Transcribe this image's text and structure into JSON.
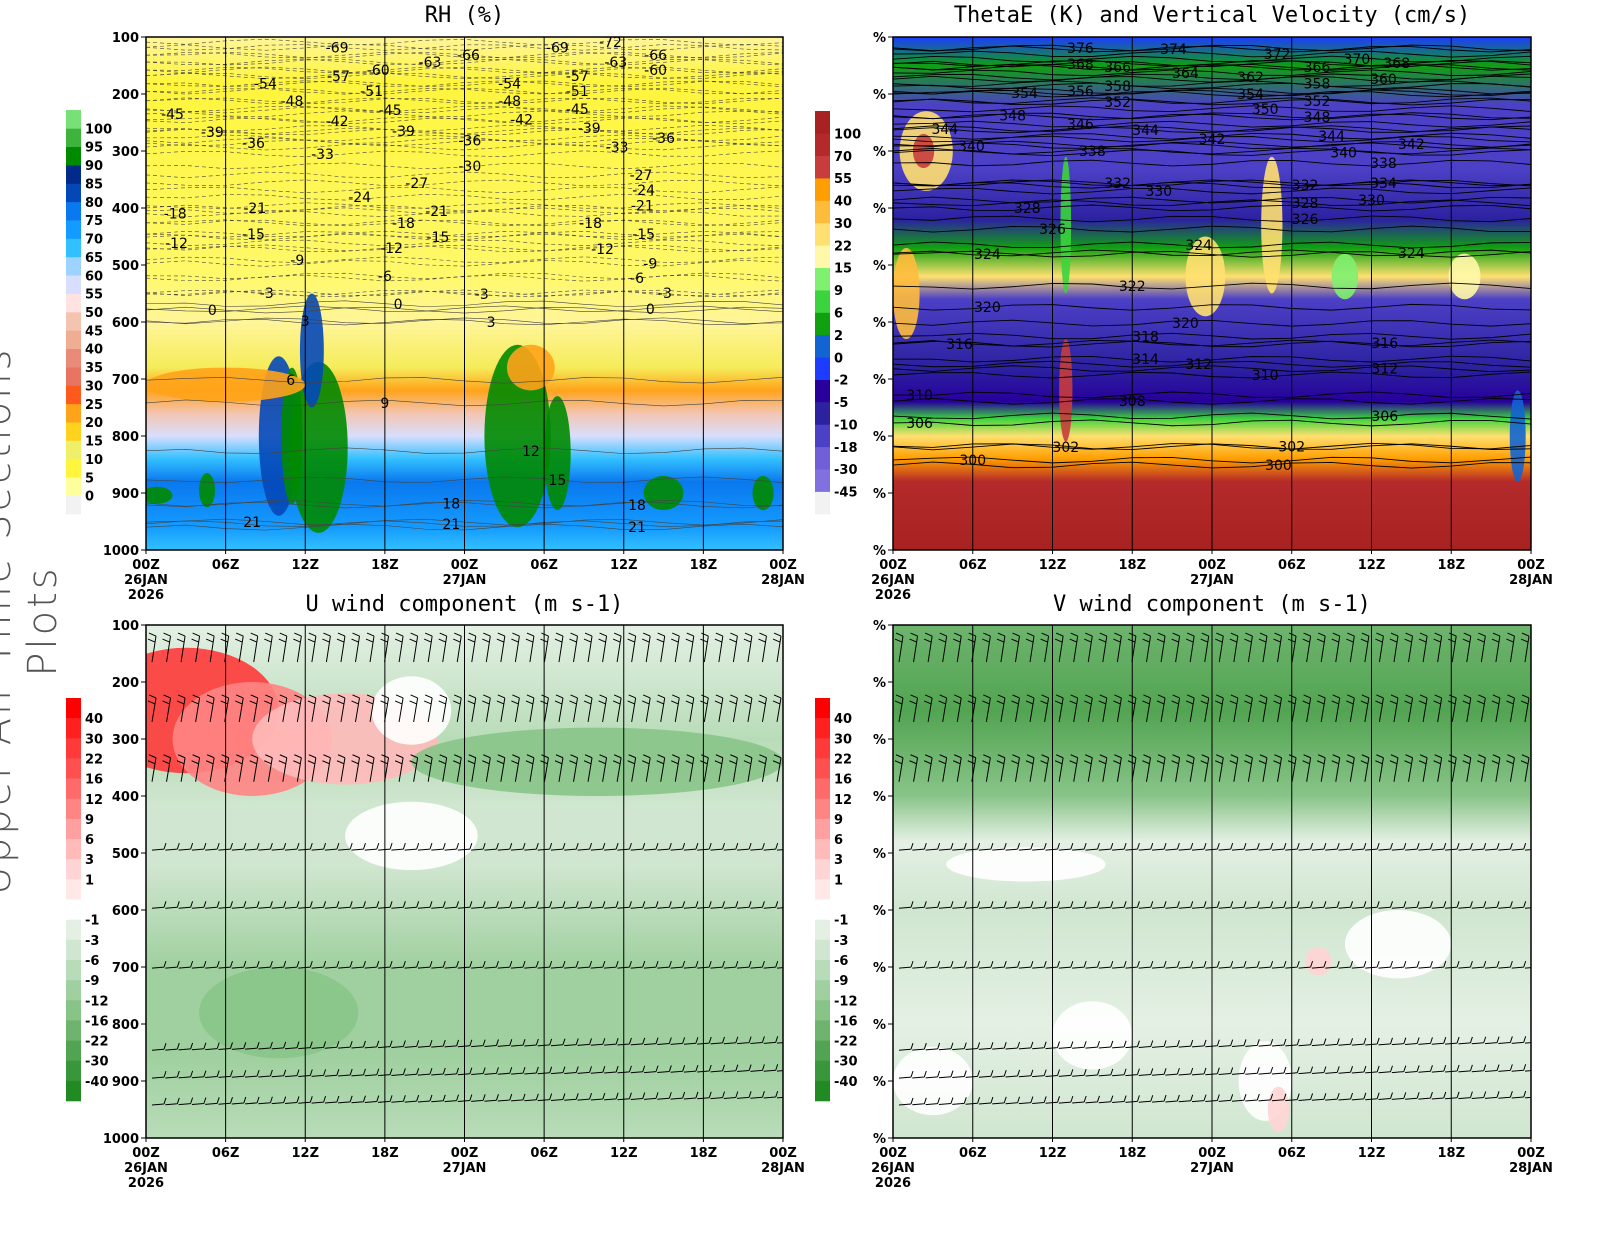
{
  "page_title": "Upper-Air Time Sections Plots",
  "chart_data": [
    {
      "type": "heatmap",
      "title": "RH (%)",
      "x_ticks": [
        "00Z",
        "06Z",
        "12Z",
        "18Z",
        "00Z",
        "06Z",
        "12Z",
        "18Z",
        "00Z"
      ],
      "x_date_labels": [
        {
          "tick": 0,
          "lines": [
            "26JAN",
            "2026"
          ]
        },
        {
          "tick": 4,
          "lines": [
            "27JAN"
          ]
        },
        {
          "tick": 8,
          "lines": [
            "28JAN"
          ]
        }
      ],
      "xlim_hours": [
        0,
        48
      ],
      "y_ticks": [
        "100",
        "200",
        "300",
        "400",
        "500",
        "600",
        "700",
        "800",
        "900",
        "1000"
      ],
      "ylim": [
        1000,
        100
      ],
      "grid": "vertical lines every 6h",
      "colorbar": {
        "labels": [
          "0",
          "5",
          "10",
          "15",
          "20",
          "25",
          "30",
          "35",
          "40",
          "45",
          "50",
          "55",
          "60",
          "65",
          "70",
          "75",
          "80",
          "85",
          "90",
          "95",
          "100"
        ],
        "colors": [
          "#f2f2f2",
          "#ffff9c",
          "#fff53c",
          "#f0ef6a",
          "#ffd21e",
          "#ffa31a",
          "#ff5a1e",
          "#e87562",
          "#ea8a78",
          "#efae92",
          "#f4c4b0",
          "#ffe2e2",
          "#d8defe",
          "#9ed2ff",
          "#33c0ff",
          "#149bff",
          "#0a78ee",
          "#0448b8",
          "#022a8a",
          "#008a00",
          "#3eb33e",
          "#78e078"
        ]
      },
      "contour_labels": [
        [
          14.4,
          118,
          "-69"
        ],
        [
          35,
          109,
          "-72"
        ],
        [
          24.3,
          132,
          "-66"
        ],
        [
          38.4,
          132,
          "-66"
        ],
        [
          31,
          118,
          "-69"
        ],
        [
          21.4,
          144,
          "-63"
        ],
        [
          35.4,
          144,
          "-63"
        ],
        [
          17.5,
          158,
          "-60"
        ],
        [
          38.4,
          158,
          "-60"
        ],
        [
          14.5,
          168,
          "-57"
        ],
        [
          32.5,
          168,
          "-57"
        ],
        [
          9,
          182,
          "-54"
        ],
        [
          27.4,
          182,
          "-54"
        ],
        [
          17,
          195,
          "-51"
        ],
        [
          32.5,
          195,
          "-51"
        ],
        [
          11,
          212,
          "-48"
        ],
        [
          27.4,
          212,
          "-48"
        ],
        [
          2,
          235,
          "-45"
        ],
        [
          18.4,
          228,
          "-45"
        ],
        [
          32.5,
          226,
          "-45"
        ],
        [
          14.4,
          247,
          "-42"
        ],
        [
          28.3,
          245,
          "-42"
        ],
        [
          5,
          267,
          "-39"
        ],
        [
          19.4,
          265,
          "-39"
        ],
        [
          33.4,
          260,
          "-39"
        ],
        [
          8.1,
          286,
          "-36"
        ],
        [
          24.4,
          282,
          "-36"
        ],
        [
          39,
          277,
          "-36"
        ],
        [
          13.3,
          305,
          "-33"
        ],
        [
          35.5,
          293,
          "-33"
        ],
        [
          24.4,
          326,
          "-30"
        ],
        [
          20.4,
          356,
          "-27"
        ],
        [
          37.3,
          342,
          "-27"
        ],
        [
          16.1,
          381,
          "-24"
        ],
        [
          37.5,
          368,
          "-24"
        ],
        [
          8.2,
          400,
          "-21"
        ],
        [
          21.9,
          405,
          "-21"
        ],
        [
          37.4,
          396,
          "-21"
        ],
        [
          2.2,
          410,
          "-18"
        ],
        [
          19.4,
          426,
          "-18"
        ],
        [
          33.5,
          426,
          "-18"
        ],
        [
          8.1,
          446,
          "-15"
        ],
        [
          22,
          451,
          "-15"
        ],
        [
          37.5,
          446,
          "-15"
        ],
        [
          2.3,
          461,
          "-12"
        ],
        [
          18.5,
          470,
          "-12"
        ],
        [
          34.4,
          472,
          "-12"
        ],
        [
          11.4,
          491,
          "-9"
        ],
        [
          38,
          497,
          "-9"
        ],
        [
          18,
          519,
          "-6"
        ],
        [
          37,
          523,
          "-6"
        ],
        [
          9.1,
          549,
          "-3"
        ],
        [
          25.3,
          551,
          "-3"
        ],
        [
          39.1,
          549,
          "-3"
        ],
        [
          5,
          579,
          "0"
        ],
        [
          19,
          568,
          "0"
        ],
        [
          38,
          577,
          "0"
        ],
        [
          12,
          598,
          "3"
        ],
        [
          26,
          600,
          "3"
        ],
        [
          10.9,
          702,
          "6"
        ],
        [
          18,
          742,
          "9"
        ],
        [
          29,
          826,
          "12"
        ],
        [
          31,
          877,
          "15"
        ],
        [
          23,
          918,
          "18"
        ],
        [
          37,
          921,
          "18"
        ],
        [
          8,
          951,
          "21"
        ],
        [
          23,
          954,
          "21"
        ],
        [
          37,
          960,
          "21"
        ]
      ]
    },
    {
      "type": "heatmap",
      "title": "ThetaE (K) and Vertical Velocity (cm/s)",
      "x_ticks": [
        "00Z",
        "06Z",
        "12Z",
        "18Z",
        "00Z",
        "06Z",
        "12Z",
        "18Z",
        "00Z"
      ],
      "x_date_labels": [
        {
          "tick": 0,
          "lines": [
            "26JAN",
            "2026"
          ]
        },
        {
          "tick": 4,
          "lines": [
            "27JAN"
          ]
        },
        {
          "tick": 8,
          "lines": [
            "28JAN"
          ]
        }
      ],
      "xlim_hours": [
        0,
        48
      ],
      "y_ticks": [
        "%",
        "%",
        "%",
        "%",
        "%",
        "%",
        "%",
        "%",
        "%",
        "%"
      ],
      "ylim": [
        1000,
        100
      ],
      "colorbar": {
        "labels": [
          "-45",
          "-30",
          "-18",
          "-10",
          "-5",
          "-2",
          "0",
          "2",
          "6",
          "9",
          "15",
          "22",
          "30",
          "40",
          "55",
          "70",
          "100"
        ],
        "colors": [
          "#f2f2f2",
          "#8070e0",
          "#7060d8",
          "#4c40c6",
          "#2c22a0",
          "#28009c",
          "#1e3cff",
          "#1264d2",
          "#10a010",
          "#3cd43c",
          "#80f070",
          "#fff8a8",
          "#ffe070",
          "#ffbc3c",
          "#ff9e00",
          "#c83c3c",
          "#b42a2a",
          "#a82222"
        ]
      },
      "contour_labels": [
        [
          14.1,
          119,
          "376"
        ],
        [
          21.1,
          121,
          "374"
        ],
        [
          28.9,
          130,
          "372"
        ],
        [
          34.9,
          139,
          "370"
        ],
        [
          14.1,
          147,
          "368"
        ],
        [
          37.9,
          146,
          "368"
        ],
        [
          16.9,
          153,
          "366"
        ],
        [
          31.9,
          153,
          "366"
        ],
        [
          22,
          163,
          "364"
        ],
        [
          26.9,
          170,
          "362"
        ],
        [
          36.9,
          174,
          "360"
        ],
        [
          16.9,
          186,
          "358"
        ],
        [
          31.9,
          182,
          "358"
        ],
        [
          14.1,
          195,
          "356"
        ],
        [
          9.9,
          198,
          "354"
        ],
        [
          26.9,
          200,
          "354"
        ],
        [
          16.9,
          214,
          "352"
        ],
        [
          31.9,
          212,
          "352"
        ],
        [
          28,
          226,
          "350"
        ],
        [
          9,
          238,
          "348"
        ],
        [
          31.9,
          240,
          "348"
        ],
        [
          14.1,
          253,
          "346"
        ],
        [
          3.9,
          261,
          "344"
        ],
        [
          19,
          263,
          "344"
        ],
        [
          33,
          274,
          "344"
        ],
        [
          24,
          279,
          "342"
        ],
        [
          39,
          288,
          "342"
        ],
        [
          5.9,
          291,
          "340"
        ],
        [
          33.9,
          303,
          "340"
        ],
        [
          15,
          300,
          "338"
        ],
        [
          36.9,
          321,
          "338"
        ],
        [
          36.9,
          356,
          "334"
        ],
        [
          16.9,
          356,
          "332"
        ],
        [
          31,
          360,
          "332"
        ],
        [
          20,
          370,
          "330"
        ],
        [
          36,
          386,
          "330"
        ],
        [
          10.1,
          400,
          "328"
        ],
        [
          31,
          391,
          "328"
        ],
        [
          12,
          437,
          "326"
        ],
        [
          31,
          419,
          "326"
        ],
        [
          7.1,
          481,
          "324"
        ],
        [
          23,
          465,
          "324"
        ],
        [
          39,
          479,
          "324"
        ],
        [
          18,
          537,
          "322"
        ],
        [
          7.1,
          574,
          "320"
        ],
        [
          22,
          602,
          "320"
        ],
        [
          19,
          625,
          "318"
        ],
        [
          5,
          639,
          "316"
        ],
        [
          37,
          637,
          "316"
        ],
        [
          19,
          665,
          "314"
        ],
        [
          23,
          674,
          "312"
        ],
        [
          37,
          682,
          "312"
        ],
        [
          2,
          728,
          "310"
        ],
        [
          28,
          693,
          "310"
        ],
        [
          18,
          739,
          "308"
        ],
        [
          2,
          777,
          "306"
        ],
        [
          37,
          765,
          "306"
        ],
        [
          13,
          819,
          "302"
        ],
        [
          30,
          818,
          "302"
        ],
        [
          6,
          842,
          "300"
        ],
        [
          29,
          851,
          "300"
        ]
      ]
    },
    {
      "type": "heatmap",
      "title": "U wind component (m s-1)",
      "x_ticks": [
        "00Z",
        "06Z",
        "12Z",
        "18Z",
        "00Z",
        "06Z",
        "12Z",
        "18Z",
        "00Z"
      ],
      "x_date_labels": [
        {
          "tick": 0,
          "lines": [
            "26JAN",
            "2026"
          ]
        },
        {
          "tick": 4,
          "lines": [
            "27JAN"
          ]
        },
        {
          "tick": 8,
          "lines": [
            "28JAN"
          ]
        }
      ],
      "xlim_hours": [
        0,
        48
      ],
      "y_ticks": [
        "100",
        "200",
        "300",
        "400",
        "500",
        "600",
        "700",
        "800",
        "900",
        "1000"
      ],
      "ylim": [
        1000,
        100
      ],
      "wind_barbs": true,
      "colorbar": {
        "labels": [
          "40",
          "30",
          "22",
          "16",
          "12",
          "9",
          "6",
          "3",
          "1",
          "-1",
          "-3",
          "-6",
          "-9",
          "-12",
          "-16",
          "-22",
          "-30",
          "-40"
        ],
        "colors": [
          "#ff0000",
          "#ff2020",
          "#ff3a3a",
          "#ff5050",
          "#ff6a6a",
          "#ff8484",
          "#ffa0a0",
          "#ffbaba",
          "#ffd4d4",
          "#ffe8e8",
          "#ffffff",
          "#e4f0e4",
          "#d0e6d0",
          "#b8dcb8",
          "#a0d0a0",
          "#88c488",
          "#6eb46e",
          "#52a452",
          "#3a963a",
          "#228a22"
        ]
      }
    },
    {
      "type": "heatmap",
      "title": "V wind component (m s-1)",
      "x_ticks": [
        "00Z",
        "06Z",
        "12Z",
        "18Z",
        "00Z",
        "06Z",
        "12Z",
        "18Z",
        "00Z"
      ],
      "x_date_labels": [
        {
          "tick": 0,
          "lines": [
            "26JAN",
            "2026"
          ]
        },
        {
          "tick": 4,
          "lines": [
            "27JAN"
          ]
        },
        {
          "tick": 8,
          "lines": [
            "28JAN"
          ]
        }
      ],
      "xlim_hours": [
        0,
        48
      ],
      "y_ticks": [
        "%",
        "%",
        "%",
        "%",
        "%",
        "%",
        "%",
        "%",
        "%",
        "%"
      ],
      "ylim": [
        1000,
        100
      ],
      "wind_barbs": true,
      "colorbar": {
        "labels": [
          "40",
          "30",
          "22",
          "16",
          "12",
          "9",
          "6",
          "3",
          "1",
          "-1",
          "-3",
          "-6",
          "-9",
          "-12",
          "-16",
          "-22",
          "-30",
          "-40"
        ],
        "colors": [
          "#ff0000",
          "#ff2020",
          "#ff3a3a",
          "#ff5050",
          "#ff6a6a",
          "#ff8484",
          "#ffa0a0",
          "#ffbaba",
          "#ffd4d4",
          "#ffe8e8",
          "#ffffff",
          "#e4f0e4",
          "#d0e6d0",
          "#b8dcb8",
          "#a0d0a0",
          "#88c488",
          "#6eb46e",
          "#52a452",
          "#3a963a",
          "#228a22"
        ]
      }
    }
  ]
}
